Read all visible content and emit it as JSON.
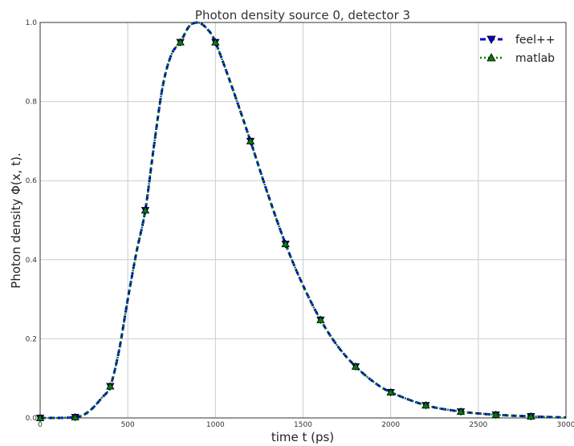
{
  "chart_data": {
    "type": "line",
    "title": "Photon density source 0, detector 3",
    "xlabel": "time t (ps)",
    "ylabel": "Photon density Φ(x, t).",
    "xlim": [
      0,
      3000
    ],
    "ylim": [
      0,
      1.0
    ],
    "x_ticks": [
      "0",
      "500",
      "1000",
      "1500",
      "2000",
      "2500",
      "3000"
    ],
    "y_ticks": [
      "0.0",
      "0.2",
      "0.4",
      "0.6",
      "0.8",
      "1.0"
    ],
    "grid": true,
    "legend_position": "top-right",
    "curve": {
      "x": [
        0,
        100,
        200,
        250,
        300,
        350,
        400,
        450,
        500,
        550,
        600,
        650,
        700,
        750,
        800,
        850,
        900,
        950,
        1000,
        1100,
        1200,
        1300,
        1400,
        1500,
        1600,
        1700,
        1800,
        1900,
        2000,
        2200,
        2400,
        2600,
        2800,
        3000
      ],
      "y": [
        0.0,
        0.0,
        0.002,
        0.008,
        0.025,
        0.05,
        0.08,
        0.17,
        0.3,
        0.42,
        0.525,
        0.69,
        0.84,
        0.92,
        0.95,
        0.99,
        1.0,
        0.985,
        0.95,
        0.83,
        0.7,
        0.565,
        0.44,
        0.335,
        0.248,
        0.18,
        0.13,
        0.092,
        0.065,
        0.032,
        0.016,
        0.008,
        0.004,
        0.001
      ]
    },
    "series": [
      {
        "name": "feel++",
        "color": "#0000cc",
        "dash": "dashed",
        "marker": "triangle-down",
        "marker_color": "#0000cc",
        "markers_x": [
          0,
          200,
          400,
          600,
          800,
          1000,
          1200,
          1400,
          1600,
          1800,
          2000,
          2200,
          2400,
          2600,
          2800
        ],
        "markers_y": [
          0.0,
          0.002,
          0.08,
          0.525,
          0.95,
          0.95,
          0.7,
          0.44,
          0.248,
          0.13,
          0.065,
          0.032,
          0.016,
          0.008,
          0.004
        ]
      },
      {
        "name": "matlab",
        "color": "#008000",
        "dash": "dotted",
        "marker": "triangle-up",
        "marker_color": "#008000",
        "markers_x": [
          0,
          200,
          400,
          600,
          800,
          1000,
          1200,
          1400,
          1600,
          1800,
          2000,
          2200,
          2400,
          2600,
          2800
        ],
        "markers_y": [
          0.0,
          0.002,
          0.08,
          0.525,
          0.95,
          0.95,
          0.7,
          0.44,
          0.248,
          0.13,
          0.065,
          0.032,
          0.016,
          0.008,
          0.004
        ]
      }
    ]
  }
}
